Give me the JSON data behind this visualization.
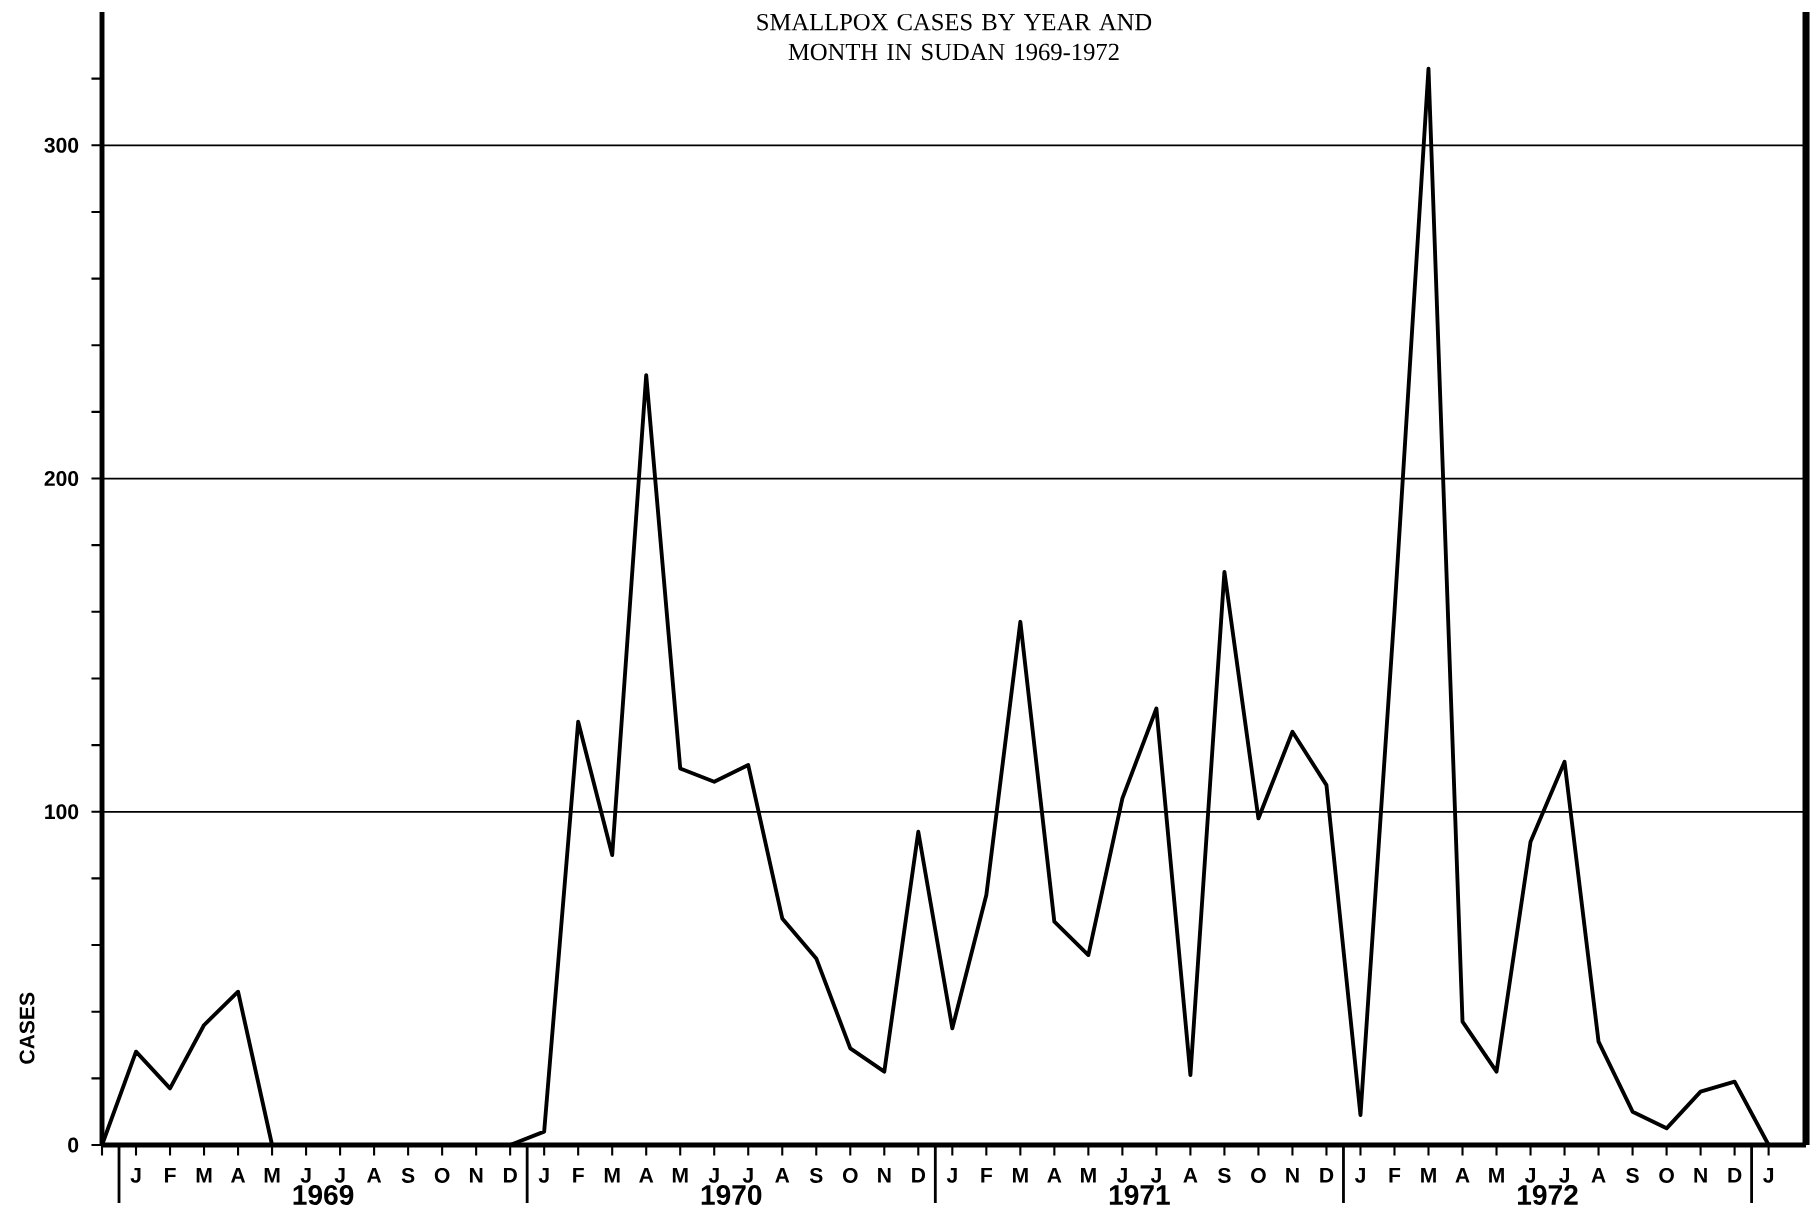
{
  "chart_data": {
    "type": "line",
    "title": "SMALLPOX CASES BY YEAR AND MONTH IN SUDAN 1969-1972",
    "ylabel": "CASES",
    "categories": [
      null,
      "J",
      "F",
      "M",
      "A",
      "M",
      "J",
      "J",
      "A",
      "S",
      "O",
      "N",
      "D",
      "J",
      "F",
      "M",
      "A",
      "M",
      "J",
      "J",
      "A",
      "S",
      "O",
      "N",
      "D",
      "J",
      "F",
      "M",
      "A",
      "M",
      "J",
      "J",
      "A",
      "S",
      "O",
      "N",
      "D",
      "J",
      "F",
      "M",
      "A",
      "M",
      "J",
      "J",
      "A",
      "S",
      "O",
      "N",
      "D",
      "J"
    ],
    "series": [
      {
        "color": "#000000",
        "values": [
          0,
          28,
          17,
          36,
          46,
          0,
          0,
          0,
          0,
          0,
          0,
          0,
          0,
          4,
          127,
          87,
          231,
          113,
          109,
          114,
          68,
          56,
          29,
          22,
          94,
          35,
          75,
          157,
          67,
          57,
          104,
          131,
          21,
          172,
          98,
          124,
          108,
          9,
          160,
          323,
          37,
          22,
          91,
          115,
          31,
          10,
          5,
          16,
          19,
          0
        ]
      }
    ],
    "ylim": [
      0,
      340
    ],
    "yticks": [
      0,
      {
        "value": 20,
        "label": null
      },
      {
        "value": 40,
        "label": null
      },
      {
        "value": 60,
        "label": null
      },
      {
        "value": 80,
        "label": null
      },
      100,
      {
        "value": 120,
        "label": null
      },
      {
        "value": 140,
        "label": null
      },
      {
        "value": 160,
        "label": null
      },
      {
        "value": 180,
        "label": null
      },
      200,
      {
        "value": 220,
        "label": null
      },
      {
        "value": 240,
        "label": null
      },
      {
        "value": 260,
        "label": null
      },
      {
        "value": 280,
        "label": null
      },
      300,
      {
        "value": 320,
        "label": null
      }
    ],
    "grid": "y",
    "marker": "none",
    "line_style": "solid",
    "annotations": [
      "1969",
      "1970",
      "1971",
      "1972"
    ]
  }
}
